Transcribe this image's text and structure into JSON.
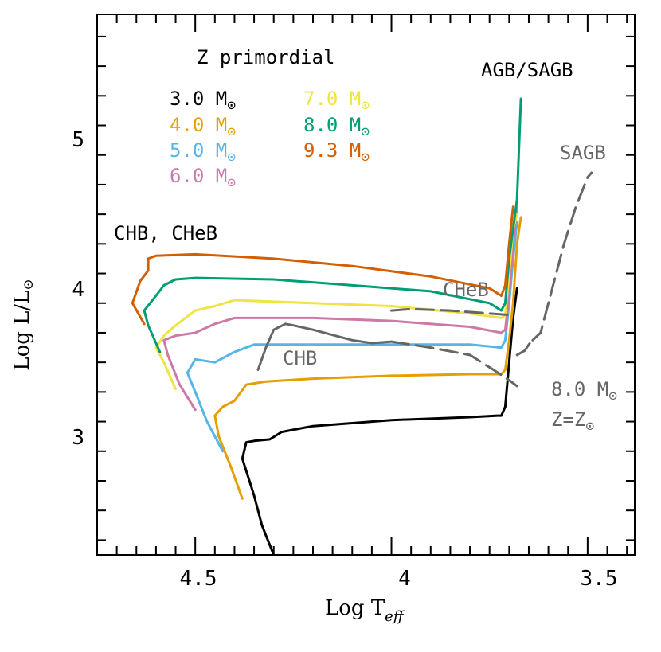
{
  "chart_data": {
    "type": "line",
    "title": "Z primordial",
    "xlabel": "Log T",
    "xlabel_sub": "eff",
    "ylabel": "Log L/L",
    "ylabel_sub": "⊙",
    "xlim": [
      4.75,
      3.38
    ],
    "ylim": [
      2.2,
      5.85
    ],
    "x_ticks": [
      4.5,
      4.0,
      3.5
    ],
    "x_tick_labels": [
      "4.5",
      "4",
      "3.5"
    ],
    "y_ticks": [
      3,
      4,
      5
    ],
    "y_tick_labels": [
      "3",
      "4",
      "5"
    ],
    "grid": false,
    "legend_position": "top-left",
    "legend": [
      {
        "label": "3.0 M",
        "color": "#000000"
      },
      {
        "label": "4.0 M",
        "color": "#E69F00"
      },
      {
        "label": "5.0 M",
        "color": "#56B4E9"
      },
      {
        "label": "6.0 M",
        "color": "#CC79A7"
      },
      {
        "label": "7.0 M",
        "color": "#F0E442"
      },
      {
        "label": "8.0 M",
        "color": "#009E73"
      },
      {
        "label": "9.3 M",
        "color": "#D55E00"
      }
    ],
    "annotations": {
      "agb": "AGB/SAGB",
      "chb_cheb": "CHB, CHeB",
      "sagb": "SAGB",
      "cheb": "CHeB",
      "chb": "CHB",
      "solar_mass": "8.0 M",
      "solar_z": "Z=Z",
      "sun_symbol": "⊙"
    },
    "series": [
      {
        "color": "#000000",
        "points": [
          [
            4.3,
            2.2
          ],
          [
            4.33,
            2.4
          ],
          [
            4.35,
            2.6
          ],
          [
            4.38,
            2.85
          ],
          [
            4.37,
            2.96
          ],
          [
            4.35,
            2.97
          ],
          [
            4.31,
            2.98
          ],
          [
            4.28,
            3.03
          ],
          [
            4.24,
            3.05
          ],
          [
            4.2,
            3.07
          ],
          [
            4.0,
            3.11
          ],
          [
            3.8,
            3.13
          ],
          [
            3.73,
            3.14
          ],
          [
            3.72,
            3.14
          ],
          [
            3.71,
            3.2
          ],
          [
            3.7,
            3.5
          ],
          [
            3.69,
            3.8
          ],
          [
            3.68,
            4.0
          ]
        ]
      },
      {
        "color": "#E69F00",
        "points": [
          [
            4.38,
            2.58
          ],
          [
            4.41,
            2.8
          ],
          [
            4.44,
            3.0
          ],
          [
            4.45,
            3.14
          ],
          [
            4.43,
            3.2
          ],
          [
            4.4,
            3.24
          ],
          [
            4.37,
            3.35
          ],
          [
            4.32,
            3.37
          ],
          [
            4.2,
            3.39
          ],
          [
            4.0,
            3.41
          ],
          [
            3.8,
            3.42
          ],
          [
            3.72,
            3.42
          ],
          [
            3.71,
            3.45
          ],
          [
            3.7,
            3.65
          ],
          [
            3.69,
            3.9
          ],
          [
            3.68,
            4.3
          ],
          [
            3.67,
            4.48
          ]
        ]
      },
      {
        "color": "#56B4E9",
        "points": [
          [
            4.43,
            2.9
          ],
          [
            4.47,
            3.1
          ],
          [
            4.5,
            3.3
          ],
          [
            4.52,
            3.43
          ],
          [
            4.5,
            3.52
          ],
          [
            4.45,
            3.5
          ],
          [
            4.4,
            3.57
          ],
          [
            4.35,
            3.62
          ],
          [
            4.2,
            3.62
          ],
          [
            4.0,
            3.62
          ],
          [
            3.8,
            3.62
          ],
          [
            3.72,
            3.6
          ],
          [
            3.71,
            3.65
          ],
          [
            3.7,
            3.9
          ],
          [
            3.69,
            4.2
          ],
          [
            3.68,
            4.45
          ]
        ]
      },
      {
        "color": "#CC79A7",
        "points": [
          [
            4.5,
            3.18
          ],
          [
            4.54,
            3.35
          ],
          [
            4.57,
            3.55
          ],
          [
            4.58,
            3.65
          ],
          [
            4.55,
            3.68
          ],
          [
            4.5,
            3.7
          ],
          [
            4.45,
            3.76
          ],
          [
            4.4,
            3.8
          ],
          [
            4.2,
            3.8
          ],
          [
            4.0,
            3.78
          ],
          [
            3.8,
            3.74
          ],
          [
            3.72,
            3.7
          ],
          [
            3.71,
            3.72
          ],
          [
            3.7,
            3.95
          ],
          [
            3.69,
            4.3
          ],
          [
            3.68,
            4.55
          ]
        ]
      },
      {
        "color": "#F0E442",
        "points": [
          [
            4.55,
            3.32
          ],
          [
            4.58,
            3.5
          ],
          [
            4.6,
            3.6
          ],
          [
            4.58,
            3.68
          ],
          [
            4.55,
            3.75
          ],
          [
            4.5,
            3.85
          ],
          [
            4.45,
            3.88
          ],
          [
            4.4,
            3.92
          ],
          [
            4.2,
            3.9
          ],
          [
            4.0,
            3.88
          ],
          [
            3.8,
            3.83
          ],
          [
            3.72,
            3.8
          ],
          [
            3.71,
            3.82
          ],
          [
            3.7,
            4.1
          ],
          [
            3.69,
            4.4
          ],
          [
            3.68,
            4.5
          ]
        ]
      },
      {
        "color": "#009E73",
        "points": [
          [
            4.59,
            3.57
          ],
          [
            4.62,
            3.75
          ],
          [
            4.63,
            3.85
          ],
          [
            4.6,
            3.95
          ],
          [
            4.58,
            4.02
          ],
          [
            4.55,
            4.06
          ],
          [
            4.5,
            4.07
          ],
          [
            4.3,
            4.06
          ],
          [
            4.1,
            4.02
          ],
          [
            3.9,
            3.98
          ],
          [
            3.75,
            3.9
          ],
          [
            3.72,
            3.85
          ],
          [
            3.71,
            3.9
          ],
          [
            3.7,
            4.2
          ],
          [
            3.68,
            4.6
          ],
          [
            3.67,
            5.28
          ]
        ]
      },
      {
        "color": "#D55E00",
        "points": [
          [
            4.63,
            3.76
          ],
          [
            4.66,
            3.9
          ],
          [
            4.64,
            4.05
          ],
          [
            4.62,
            4.12
          ],
          [
            4.62,
            4.2
          ],
          [
            4.6,
            4.22
          ],
          [
            4.5,
            4.23
          ],
          [
            4.3,
            4.2
          ],
          [
            4.1,
            4.15
          ],
          [
            3.9,
            4.08
          ],
          [
            3.75,
            4.0
          ],
          [
            3.72,
            3.95
          ],
          [
            3.71,
            4.02
          ],
          [
            3.7,
            4.3
          ],
          [
            3.69,
            4.55
          ]
        ]
      }
    ],
    "solar_series": [
      {
        "color": "#666666",
        "dashed": false,
        "points": [
          [
            4.34,
            3.45
          ],
          [
            4.32,
            3.6
          ],
          [
            4.3,
            3.72
          ],
          [
            4.27,
            3.76
          ],
          [
            4.25,
            3.75
          ],
          [
            4.2,
            3.72
          ],
          [
            4.1,
            3.65
          ],
          [
            4.05,
            3.63
          ],
          [
            4.0,
            3.64
          ]
        ]
      },
      {
        "color": "#666666",
        "dashed": true,
        "points": [
          [
            4.0,
            3.64
          ],
          [
            3.9,
            3.6
          ],
          [
            3.8,
            3.55
          ],
          [
            3.74,
            3.45
          ],
          [
            3.7,
            3.38
          ],
          [
            3.68,
            3.34
          ]
        ]
      },
      {
        "color": "#666666",
        "dashed": true,
        "points": [
          [
            4.0,
            3.85
          ],
          [
            3.95,
            3.86
          ],
          [
            3.85,
            3.85
          ],
          [
            3.75,
            3.83
          ],
          [
            3.7,
            3.82
          ]
        ]
      },
      {
        "color": "#666666",
        "dashed": true,
        "points": [
          [
            3.64,
            3.65
          ],
          [
            3.62,
            3.7
          ],
          [
            3.61,
            3.8
          ],
          [
            3.59,
            4.0
          ],
          [
            3.56,
            4.3
          ],
          [
            3.53,
            4.55
          ],
          [
            3.5,
            4.75
          ],
          [
            3.49,
            4.78
          ]
        ]
      },
      {
        "color": "#666666",
        "dashed": true,
        "points": [
          [
            3.68,
            3.55
          ],
          [
            3.66,
            3.58
          ],
          [
            3.65,
            3.62
          ],
          [
            3.64,
            3.65
          ]
        ]
      }
    ]
  }
}
